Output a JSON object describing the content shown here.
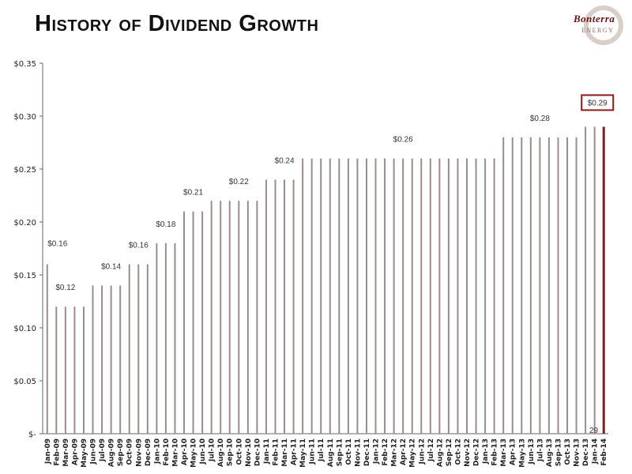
{
  "header": {
    "title": "History of Dividend Growth",
    "logo_text": "Bonterra",
    "logo_sub": "ENERGY"
  },
  "page_number": "29",
  "chart_data": {
    "type": "bar",
    "title": "History of Dividend Growth",
    "xlabel": "",
    "ylabel": "",
    "ylim": [
      0,
      0.35
    ],
    "yticks": [
      0,
      0.05,
      0.1,
      0.15,
      0.2,
      0.25,
      0.3,
      0.35
    ],
    "ytick_labels": [
      "$-",
      "$0.05",
      "$0.10",
      "$0.15",
      "$0.20",
      "$0.25",
      "$0.30",
      "$0.35"
    ],
    "categories": [
      "Jan-09",
      "Feb-09",
      "Mar-09",
      "Apr-09",
      "May-09",
      "Jun-09",
      "Jul-09",
      "Aug-09",
      "Sep-09",
      "Oct-09",
      "Nov-09",
      "Dec-09",
      "Jan-10",
      "Feb-10",
      "Mar-10",
      "Apr-10",
      "May-10",
      "Jun-10",
      "Jul-10",
      "Aug-10",
      "Sep-10",
      "Oct-10",
      "Nov-10",
      "Dec-10",
      "Jan-11",
      "Feb-11",
      "Mar-11",
      "Apr-11",
      "May-11",
      "Jun-11",
      "Jul-11",
      "Aug-11",
      "Sep-11",
      "Oct-11",
      "Nov-11",
      "Dec-11",
      "Jan-12",
      "Feb-12",
      "Mar-12",
      "Apr-12",
      "May-12",
      "Jun-12",
      "Jul-12",
      "Aug-12",
      "Sep-12",
      "Oct-12",
      "Nov-12",
      "Dec-12",
      "Jan-13",
      "Feb-13",
      "Mar-13",
      "Apr-13",
      "May-13",
      "Jun-13",
      "Jul-13",
      "Aug-13",
      "Sep-13",
      "Oct-13",
      "Nov-13",
      "Dec-13",
      "Jan-14",
      "Feb-14"
    ],
    "values": [
      0.16,
      0.12,
      0.12,
      0.12,
      0.12,
      0.14,
      0.14,
      0.14,
      0.14,
      0.16,
      0.16,
      0.16,
      0.18,
      0.18,
      0.18,
      0.21,
      0.21,
      0.21,
      0.22,
      0.22,
      0.22,
      0.22,
      0.22,
      0.22,
      0.24,
      0.24,
      0.24,
      0.24,
      0.26,
      0.26,
      0.26,
      0.26,
      0.26,
      0.26,
      0.26,
      0.26,
      0.26,
      0.26,
      0.26,
      0.26,
      0.26,
      0.26,
      0.26,
      0.26,
      0.26,
      0.26,
      0.26,
      0.26,
      0.26,
      0.26,
      0.28,
      0.28,
      0.28,
      0.28,
      0.28,
      0.28,
      0.28,
      0.28,
      0.28,
      0.29,
      0.29,
      0.29
    ],
    "highlight_index": 61,
    "bar_color": "#9a8c8c",
    "highlight_color": "#8b1a1a",
    "data_labels": [
      {
        "index": 0,
        "text": "$0.16"
      },
      {
        "index": 2,
        "text": "$0.12"
      },
      {
        "index": 7,
        "text": "$0.14"
      },
      {
        "index": 10,
        "text": "$0.16"
      },
      {
        "index": 13,
        "text": "$0.18"
      },
      {
        "index": 16,
        "text": "$0.21"
      },
      {
        "index": 21,
        "text": "$0.22"
      },
      {
        "index": 26,
        "text": "$0.24"
      },
      {
        "index": 39,
        "text": "$0.26"
      },
      {
        "index": 54,
        "text": "$0.28"
      },
      {
        "index": 61,
        "text": "$0.29",
        "boxed": true
      }
    ],
    "grid": false
  }
}
